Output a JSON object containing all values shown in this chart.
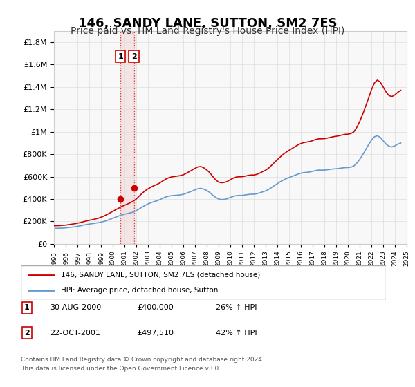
{
  "title": "146, SANDY LANE, SUTTON, SM2 7ES",
  "subtitle": "Price paid vs. HM Land Registry's House Price Index (HPI)",
  "title_fontsize": 13,
  "subtitle_fontsize": 10,
  "ylabel": "",
  "xlabel": "",
  "ylim": [
    0,
    1900000
  ],
  "yticks": [
    0,
    200000,
    400000,
    600000,
    800000,
    1000000,
    1200000,
    1400000,
    1600000,
    1800000
  ],
  "ytick_labels": [
    "£0",
    "£200K",
    "£400K",
    "£600K",
    "£800K",
    "£1M",
    "£1.2M",
    "£1.4M",
    "£1.6M",
    "£1.8M"
  ],
  "x_start_year": 1995,
  "x_end_year": 2025,
  "red_line_color": "#cc0000",
  "blue_line_color": "#6699cc",
  "sale1_date": "30-AUG-2000",
  "sale1_price": 400000,
  "sale1_hpi": "26% ↑ HPI",
  "sale1_year": 2000.66,
  "sale1_label": "1",
  "sale2_date": "22-OCT-2001",
  "sale2_price": 497510,
  "sale2_hpi": "42% ↑ HPI",
  "sale2_year": 2001.8,
  "sale2_label": "2",
  "legend_line1": "146, SANDY LANE, SUTTON, SM2 7ES (detached house)",
  "legend_line2": "HPI: Average price, detached house, Sutton",
  "footer_line1": "Contains HM Land Registry data © Crown copyright and database right 2024.",
  "footer_line2": "This data is licensed under the Open Government Licence v3.0.",
  "hpi_years": [
    1995.0,
    1995.25,
    1995.5,
    1995.75,
    1996.0,
    1996.25,
    1996.5,
    1996.75,
    1997.0,
    1997.25,
    1997.5,
    1997.75,
    1998.0,
    1998.25,
    1998.5,
    1998.75,
    1999.0,
    1999.25,
    1999.5,
    1999.75,
    2000.0,
    2000.25,
    2000.5,
    2000.75,
    2001.0,
    2001.25,
    2001.5,
    2001.75,
    2002.0,
    2002.25,
    2002.5,
    2002.75,
    2003.0,
    2003.25,
    2003.5,
    2003.75,
    2004.0,
    2004.25,
    2004.5,
    2004.75,
    2005.0,
    2005.25,
    2005.5,
    2005.75,
    2006.0,
    2006.25,
    2006.5,
    2006.75,
    2007.0,
    2007.25,
    2007.5,
    2007.75,
    2008.0,
    2008.25,
    2008.5,
    2008.75,
    2009.0,
    2009.25,
    2009.5,
    2009.75,
    2010.0,
    2010.25,
    2010.5,
    2010.75,
    2011.0,
    2011.25,
    2011.5,
    2011.75,
    2012.0,
    2012.25,
    2012.5,
    2012.75,
    2013.0,
    2013.25,
    2013.5,
    2013.75,
    2014.0,
    2014.25,
    2014.5,
    2014.75,
    2015.0,
    2015.25,
    2015.5,
    2015.75,
    2016.0,
    2016.25,
    2016.5,
    2016.75,
    2017.0,
    2017.25,
    2017.5,
    2017.75,
    2018.0,
    2018.25,
    2018.5,
    2018.75,
    2019.0,
    2019.25,
    2019.5,
    2019.75,
    2020.0,
    2020.25,
    2020.5,
    2020.75,
    2021.0,
    2021.25,
    2021.5,
    2021.75,
    2022.0,
    2022.25,
    2022.5,
    2022.75,
    2023.0,
    2023.25,
    2023.5,
    2023.75,
    2024.0,
    2024.25,
    2024.5
  ],
  "hpi_values": [
    138000,
    139000,
    140000,
    141000,
    143000,
    146000,
    149000,
    152000,
    156000,
    161000,
    167000,
    172000,
    176000,
    180000,
    184000,
    188000,
    193000,
    200000,
    208000,
    218000,
    228000,
    238000,
    248000,
    257000,
    264000,
    270000,
    276000,
    283000,
    295000,
    312000,
    328000,
    343000,
    356000,
    367000,
    376000,
    384000,
    394000,
    407000,
    418000,
    425000,
    430000,
    432000,
    434000,
    437000,
    442000,
    451000,
    461000,
    471000,
    482000,
    492000,
    495000,
    488000,
    476000,
    458000,
    435000,
    415000,
    400000,
    395000,
    397000,
    403000,
    414000,
    423000,
    430000,
    432000,
    432000,
    436000,
    440000,
    443000,
    443000,
    447000,
    455000,
    464000,
    472000,
    485000,
    502000,
    520000,
    537000,
    554000,
    569000,
    581000,
    592000,
    602000,
    612000,
    622000,
    630000,
    636000,
    638000,
    641000,
    647000,
    654000,
    658000,
    658000,
    658000,
    661000,
    665000,
    668000,
    670000,
    673000,
    677000,
    680000,
    681000,
    684000,
    694000,
    720000,
    753000,
    793000,
    838000,
    884000,
    925000,
    955000,
    965000,
    950000,
    920000,
    890000,
    870000,
    865000,
    875000,
    890000,
    900000
  ],
  "red_years": [
    1995.0,
    1995.25,
    1995.5,
    1995.75,
    1996.0,
    1996.25,
    1996.5,
    1996.75,
    1997.0,
    1997.25,
    1997.5,
    1997.75,
    1998.0,
    1998.25,
    1998.5,
    1998.75,
    1999.0,
    1999.25,
    1999.5,
    1999.75,
    2000.0,
    2000.25,
    2000.5,
    2000.75,
    2001.0,
    2001.25,
    2001.5,
    2001.75,
    2002.0,
    2002.25,
    2002.5,
    2002.75,
    2003.0,
    2003.25,
    2003.5,
    2003.75,
    2004.0,
    2004.25,
    2004.5,
    2004.75,
    2005.0,
    2005.25,
    2005.5,
    2005.75,
    2006.0,
    2006.25,
    2006.5,
    2006.75,
    2007.0,
    2007.25,
    2007.5,
    2007.75,
    2008.0,
    2008.25,
    2008.5,
    2008.75,
    2009.0,
    2009.25,
    2009.5,
    2009.75,
    2010.0,
    2010.25,
    2010.5,
    2010.75,
    2011.0,
    2011.25,
    2011.5,
    2011.75,
    2012.0,
    2012.25,
    2012.5,
    2012.75,
    2013.0,
    2013.25,
    2013.5,
    2013.75,
    2014.0,
    2014.25,
    2014.5,
    2014.75,
    2015.0,
    2015.25,
    2015.5,
    2015.75,
    2016.0,
    2016.25,
    2016.5,
    2016.75,
    2017.0,
    2017.25,
    2017.5,
    2017.75,
    2018.0,
    2018.25,
    2018.5,
    2018.75,
    2019.0,
    2019.25,
    2019.5,
    2019.75,
    2020.0,
    2020.25,
    2020.5,
    2020.75,
    2021.0,
    2021.25,
    2021.5,
    2021.75,
    2022.0,
    2022.25,
    2022.5,
    2022.75,
    2023.0,
    2023.25,
    2023.5,
    2023.75,
    2024.0,
    2024.25,
    2024.5
  ],
  "red_values": [
    161000,
    162000,
    163000,
    165000,
    167000,
    171000,
    175000,
    179000,
    184000,
    190000,
    197000,
    204000,
    210000,
    215000,
    221000,
    228000,
    237000,
    248000,
    261000,
    275000,
    289000,
    304000,
    318000,
    332000,
    344000,
    355000,
    367000,
    381000,
    400000,
    426000,
    451000,
    473000,
    491000,
    506000,
    519000,
    530000,
    543000,
    561000,
    577000,
    589000,
    597000,
    601000,
    605000,
    609000,
    616000,
    629000,
    644000,
    659000,
    674000,
    687000,
    690000,
    678000,
    659000,
    635000,
    602000,
    572000,
    551000,
    545000,
    548000,
    557000,
    573000,
    586000,
    596000,
    599000,
    599000,
    604000,
    610000,
    614000,
    614000,
    620000,
    631000,
    645000,
    657000,
    675000,
    700000,
    726000,
    751000,
    776000,
    799000,
    818000,
    835000,
    851000,
    867000,
    883000,
    895000,
    904000,
    908000,
    913000,
    921000,
    931000,
    937000,
    938000,
    939000,
    944000,
    950000,
    956000,
    960000,
    965000,
    971000,
    977000,
    979000,
    984000,
    999000,
    1038000,
    1090000,
    1154000,
    1224000,
    1299000,
    1374000,
    1435000,
    1461000,
    1444000,
    1400000,
    1355000,
    1323000,
    1315000,
    1330000,
    1353000,
    1370000
  ],
  "background_color": "#ffffff",
  "grid_color": "#dddddd",
  "plot_bg_color": "#f8f8f8"
}
